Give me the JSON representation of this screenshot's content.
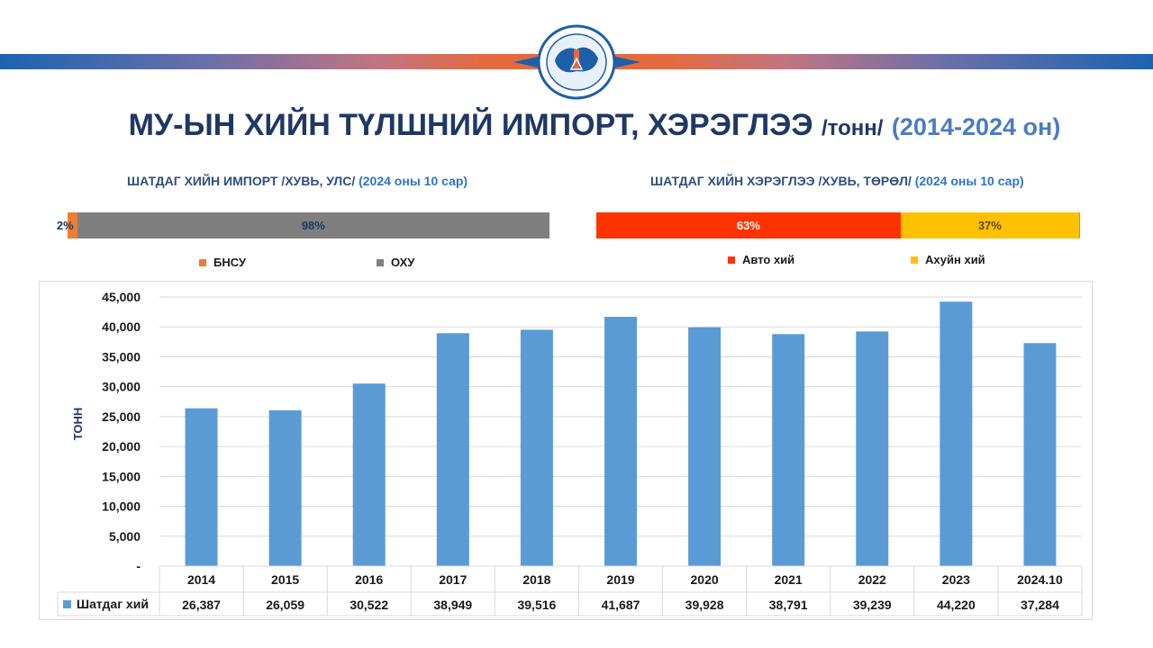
{
  "header": {
    "title_main": "МУ-ЫН ХИЙН ТҮЛШНИЙ ИМПОРТ, ХЭРЭГЛЭЭ",
    "title_unit": "/тонн/",
    "title_years": "(2014-2024 он)",
    "logo_text": "ЭРДЭС БАЯЛАГ, ГАЗРЫН ТОСНЫ ГАЗАР · MINERAL RESOURCES AND PETROLEUM AUTHORITY",
    "band_colors": [
      "#1d63b0",
      "#e36a3f"
    ]
  },
  "import_share": {
    "title": "ШАТДАГ ХИЙН ИМПОРТ /ХУВЬ, УЛС/",
    "title_period": "(2024 оны 10 сар)",
    "segments": [
      {
        "name": "БНСУ",
        "percent": 2,
        "label": "2%",
        "color": "#ed7d31"
      },
      {
        "name": "ОХУ",
        "percent": 98,
        "label": "98%",
        "color": "#7f7f7f"
      }
    ]
  },
  "consumption_share": {
    "title": "ШАТДАГ ХИЙН ХЭРЭГЛЭЭ /ХУВЬ, ТӨРӨЛ/",
    "title_period": "(2024 оны 10 сар)",
    "segments": [
      {
        "name": "Авто хий",
        "percent": 63,
        "label": "63%",
        "color": "#ff3300"
      },
      {
        "name": "Ахуйн хий",
        "percent": 37,
        "label": "37%",
        "color": "#ffc000"
      }
    ]
  },
  "chart_data": {
    "type": "bar",
    "title": "",
    "xlabel": "",
    "ylabel": "тонн",
    "ylim": [
      0,
      45000
    ],
    "yticks": [
      "-",
      "5,000",
      "10,000",
      "15,000",
      "20,000",
      "25,000",
      "30,000",
      "35,000",
      "40,000",
      "45,000"
    ],
    "grid": true,
    "legend_position": "data-table",
    "categories": [
      "2014",
      "2015",
      "2016",
      "2017",
      "2018",
      "2019",
      "2020",
      "2021",
      "2022",
      "2023",
      "2024.10"
    ],
    "series": [
      {
        "name": "Шатдаг хий",
        "color": "#5b9bd5",
        "values": [
          26387,
          26059,
          30522,
          38949,
          39516,
          41687,
          39928,
          38791,
          39239,
          44220,
          37284
        ],
        "value_labels": [
          "26,387",
          "26,059",
          "30,522",
          "38,949",
          "39,516",
          "41,687",
          "39,928",
          "38,791",
          "39,239",
          "44,220",
          "37,284"
        ]
      }
    ]
  }
}
